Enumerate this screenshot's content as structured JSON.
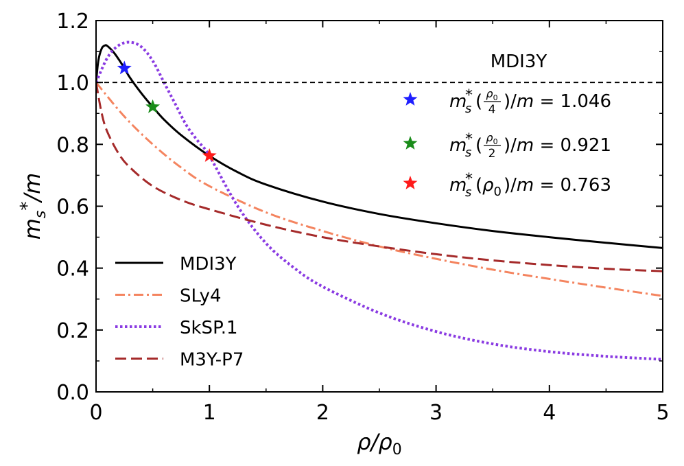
{
  "chart_data": {
    "type": "line",
    "title": "",
    "xlabel": "ρ/ρ0",
    "ylabel": "ms*/m",
    "xlim": [
      0,
      5
    ],
    "ylim": [
      0,
      1.2
    ],
    "x_ticks": [
      0,
      1,
      2,
      3,
      4,
      5
    ],
    "y_ticks": [
      0.0,
      0.2,
      0.4,
      0.6,
      0.8,
      1.0,
      1.2
    ],
    "x_tick_labels": [
      "0",
      "1",
      "2",
      "3",
      "4",
      "5"
    ],
    "y_tick_labels": [
      "0.0",
      "0.2",
      "0.4",
      "0.6",
      "0.8",
      "1.0",
      "1.2"
    ],
    "grid": false,
    "legend": {
      "placement": "lower-left"
    },
    "reference_line": {
      "y": 1.0,
      "style": "dashed",
      "color": "#000000"
    },
    "series": [
      {
        "name": "MDI3Y",
        "color": "#000000",
        "style": "solid",
        "x": [
          0,
          0.02,
          0.05,
          0.08,
          0.1,
          0.15,
          0.2,
          0.25,
          0.3,
          0.4,
          0.5,
          0.6,
          0.75,
          1.0,
          1.25,
          1.5,
          2.0,
          2.5,
          3.0,
          3.5,
          4.0,
          4.5,
          5.0
        ],
        "y": [
          1.0,
          1.07,
          1.11,
          1.12,
          1.118,
          1.1,
          1.075,
          1.046,
          1.015,
          0.965,
          0.921,
          0.88,
          0.83,
          0.763,
          0.71,
          0.67,
          0.615,
          0.575,
          0.545,
          0.52,
          0.5,
          0.482,
          0.465
        ]
      },
      {
        "name": "SLy4",
        "color": "#f4845f",
        "style": "dashdot",
        "x": [
          0,
          0.25,
          0.5,
          0.75,
          1.0,
          1.5,
          2.0,
          2.5,
          3.0,
          3.5,
          4.0,
          4.5,
          5.0
        ],
        "y": [
          1.0,
          0.89,
          0.8,
          0.725,
          0.665,
          0.58,
          0.52,
          0.47,
          0.43,
          0.395,
          0.365,
          0.337,
          0.31
        ]
      },
      {
        "name": "SkSP.1",
        "color": "#8a3be2",
        "style": "dotted",
        "x": [
          0,
          0.1,
          0.2,
          0.3,
          0.4,
          0.5,
          0.6,
          0.7,
          0.8,
          0.9,
          1.0,
          1.25,
          1.5,
          1.75,
          2.0,
          2.5,
          3.0,
          3.5,
          4.0,
          4.5,
          5.0
        ],
        "y": [
          1.0,
          1.08,
          1.12,
          1.13,
          1.115,
          1.07,
          1.0,
          0.93,
          0.86,
          0.81,
          0.763,
          0.6,
          0.48,
          0.4,
          0.34,
          0.255,
          0.195,
          0.155,
          0.13,
          0.115,
          0.105
        ]
      },
      {
        "name": "M3Y-P7",
        "color": "#a52a2a",
        "style": "dashed",
        "x": [
          0,
          0.05,
          0.1,
          0.2,
          0.3,
          0.5,
          0.75,
          1.0,
          1.5,
          2.0,
          2.5,
          3.0,
          3.5,
          4.0,
          4.5,
          5.0
        ],
        "y": [
          1.0,
          0.9,
          0.84,
          0.77,
          0.725,
          0.665,
          0.62,
          0.59,
          0.54,
          0.5,
          0.47,
          0.445,
          0.425,
          0.41,
          0.398,
          0.39
        ]
      }
    ],
    "markers": [
      {
        "x": 0.25,
        "y": 1.046,
        "color": "#1f1fff"
      },
      {
        "x": 0.5,
        "y": 0.921,
        "color": "#1a8c1a"
      },
      {
        "x": 1.0,
        "y": 0.763,
        "color": "#ff1a1a"
      }
    ],
    "annotations": {
      "model": "MDI3Y",
      "entries": [
        {
          "color": "#1f1fff",
          "arg_num": "ρ0",
          "arg_den": "4",
          "value": "1.046"
        },
        {
          "color": "#1a8c1a",
          "arg_num": "ρ0",
          "arg_den": "2",
          "value": "0.921"
        },
        {
          "color": "#ff1a1a",
          "arg": "ρ0",
          "value": "0.763"
        }
      ]
    }
  }
}
